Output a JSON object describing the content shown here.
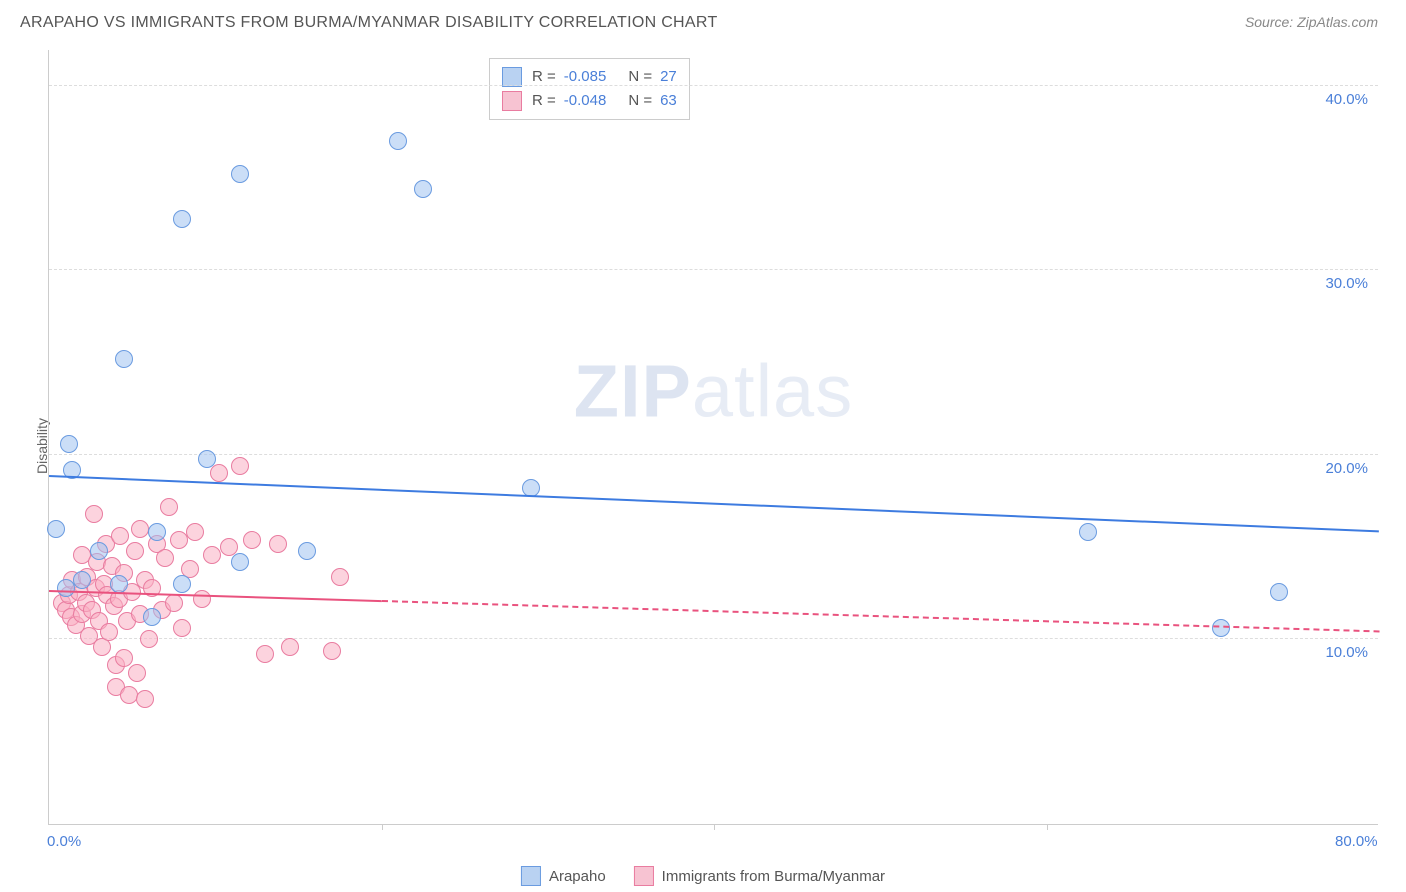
{
  "header": {
    "title": "ARAPAHO VS IMMIGRANTS FROM BURMA/MYANMAR DISABILITY CORRELATION CHART",
    "source": "Source: ZipAtlas.com"
  },
  "watermark": {
    "bold": "ZIP",
    "light": "atlas"
  },
  "axes": {
    "y_label": "Disability",
    "xlim": [
      0,
      80
    ],
    "ylim": [
      0,
      42
    ],
    "x_ticks": [
      {
        "val": 0.0,
        "label": "0.0%"
      },
      {
        "val": 80.0,
        "label": "80.0%"
      }
    ],
    "x_tick_marks": [
      20,
      40,
      60
    ],
    "y_ticks": [
      {
        "val": 10.0,
        "label": "10.0%"
      },
      {
        "val": 20.0,
        "label": "20.0%"
      },
      {
        "val": 30.0,
        "label": "30.0%"
      },
      {
        "val": 40.0,
        "label": "40.0%"
      }
    ],
    "grid_color": "#dddddd",
    "axis_color": "#cccccc",
    "tick_label_color": "#4a7fd8",
    "axis_label_color": "#666666"
  },
  "series": {
    "arapaho": {
      "label": "Arapaho",
      "fill": "rgba(160, 195, 240, 0.55)",
      "stroke": "#6a9be0",
      "swatch_fill": "#b9d2f2",
      "swatch_border": "#6a9be0",
      "line_color": "#3d7be0",
      "R": "-0.085",
      "N": "27",
      "trend": {
        "x1": 0,
        "y1": 18.8,
        "x2": 80,
        "y2": 15.8,
        "solid_to_x": 80
      },
      "points": [
        {
          "x": 29.0,
          "y": 18.2
        },
        {
          "x": 62.5,
          "y": 15.8
        },
        {
          "x": 74.0,
          "y": 12.6
        },
        {
          "x": 70.5,
          "y": 10.6
        },
        {
          "x": 21.0,
          "y": 37.0
        },
        {
          "x": 22.5,
          "y": 34.4
        },
        {
          "x": 11.5,
          "y": 35.2
        },
        {
          "x": 8.0,
          "y": 32.8
        },
        {
          "x": 4.5,
          "y": 25.2
        },
        {
          "x": 1.2,
          "y": 20.6
        },
        {
          "x": 1.4,
          "y": 19.2
        },
        {
          "x": 0.4,
          "y": 16.0
        },
        {
          "x": 1.0,
          "y": 12.8
        },
        {
          "x": 2.0,
          "y": 13.2
        },
        {
          "x": 4.2,
          "y": 13.0
        },
        {
          "x": 6.2,
          "y": 11.2
        },
        {
          "x": 6.5,
          "y": 15.8
        },
        {
          "x": 8.0,
          "y": 13.0
        },
        {
          "x": 9.5,
          "y": 19.8
        },
        {
          "x": 11.5,
          "y": 14.2
        },
        {
          "x": 15.5,
          "y": 14.8
        },
        {
          "x": 3.0,
          "y": 14.8
        }
      ]
    },
    "burma": {
      "label": "Immigrants from Burma/Myanmar",
      "fill": "rgba(250, 175, 195, 0.55)",
      "stroke": "#e97ca0",
      "swatch_fill": "#f7c3d2",
      "swatch_border": "#e97ca0",
      "line_color": "#e9527e",
      "R": "-0.048",
      "N": "63",
      "trend": {
        "x1": 0,
        "y1": 12.6,
        "x2": 80,
        "y2": 10.4,
        "solid_to_x": 20
      },
      "points": [
        {
          "x": 0.8,
          "y": 12.0
        },
        {
          "x": 1.0,
          "y": 11.6
        },
        {
          "x": 1.2,
          "y": 12.4
        },
        {
          "x": 1.3,
          "y": 11.2
        },
        {
          "x": 1.4,
          "y": 13.2
        },
        {
          "x": 1.6,
          "y": 10.8
        },
        {
          "x": 1.8,
          "y": 12.6
        },
        {
          "x": 2.0,
          "y": 11.4
        },
        {
          "x": 2.0,
          "y": 14.6
        },
        {
          "x": 2.2,
          "y": 12.0
        },
        {
          "x": 2.3,
          "y": 13.4
        },
        {
          "x": 2.4,
          "y": 10.2
        },
        {
          "x": 2.6,
          "y": 11.6
        },
        {
          "x": 2.7,
          "y": 16.8
        },
        {
          "x": 2.8,
          "y": 12.8
        },
        {
          "x": 2.9,
          "y": 14.2
        },
        {
          "x": 3.0,
          "y": 11.0
        },
        {
          "x": 3.2,
          "y": 9.6
        },
        {
          "x": 3.3,
          "y": 13.0
        },
        {
          "x": 3.4,
          "y": 15.2
        },
        {
          "x": 3.5,
          "y": 12.4
        },
        {
          "x": 3.6,
          "y": 10.4
        },
        {
          "x": 3.8,
          "y": 14.0
        },
        {
          "x": 3.9,
          "y": 11.8
        },
        {
          "x": 4.0,
          "y": 8.6
        },
        {
          "x": 4.0,
          "y": 7.4
        },
        {
          "x": 4.2,
          "y": 12.2
        },
        {
          "x": 4.3,
          "y": 15.6
        },
        {
          "x": 4.5,
          "y": 9.0
        },
        {
          "x": 4.5,
          "y": 13.6
        },
        {
          "x": 4.7,
          "y": 11.0
        },
        {
          "x": 4.8,
          "y": 7.0
        },
        {
          "x": 5.0,
          "y": 12.6
        },
        {
          "x": 5.2,
          "y": 14.8
        },
        {
          "x": 5.3,
          "y": 8.2
        },
        {
          "x": 5.5,
          "y": 11.4
        },
        {
          "x": 5.5,
          "y": 16.0
        },
        {
          "x": 5.8,
          "y": 13.2
        },
        {
          "x": 5.8,
          "y": 6.8
        },
        {
          "x": 6.0,
          "y": 10.0
        },
        {
          "x": 6.2,
          "y": 12.8
        },
        {
          "x": 6.5,
          "y": 15.2
        },
        {
          "x": 6.8,
          "y": 11.6
        },
        {
          "x": 7.0,
          "y": 14.4
        },
        {
          "x": 7.2,
          "y": 17.2
        },
        {
          "x": 7.5,
          "y": 12.0
        },
        {
          "x": 7.8,
          "y": 15.4
        },
        {
          "x": 8.0,
          "y": 10.6
        },
        {
          "x": 8.5,
          "y": 13.8
        },
        {
          "x": 8.8,
          "y": 15.8
        },
        {
          "x": 9.2,
          "y": 12.2
        },
        {
          "x": 9.8,
          "y": 14.6
        },
        {
          "x": 10.2,
          "y": 19.0
        },
        {
          "x": 10.8,
          "y": 15.0
        },
        {
          "x": 11.5,
          "y": 19.4
        },
        {
          "x": 12.2,
          "y": 15.4
        },
        {
          "x": 13.0,
          "y": 9.2
        },
        {
          "x": 13.8,
          "y": 15.2
        },
        {
          "x": 14.5,
          "y": 9.6
        },
        {
          "x": 17.0,
          "y": 9.4
        },
        {
          "x": 17.5,
          "y": 13.4
        }
      ]
    }
  },
  "chart_style": {
    "point_radius": 9,
    "background": "#ffffff",
    "title_color": "#555555",
    "source_color": "#888888"
  }
}
